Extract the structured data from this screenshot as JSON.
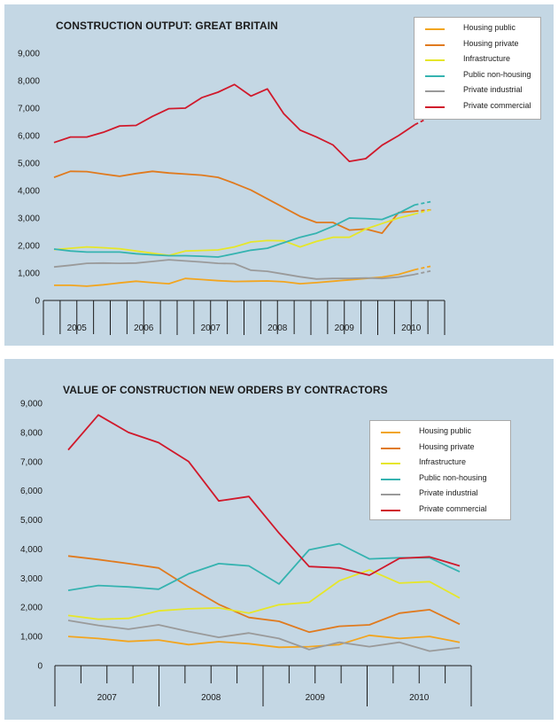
{
  "charts": [
    {
      "id": "panel1",
      "chart_data": {
        "type": "line",
        "title": "CONSTRUCTION OUTPUT: GREAT BRITAIN",
        "xlabel": "",
        "ylabel": "",
        "ylim": [
          0,
          9000
        ],
        "yticks": [
          "0",
          "1,000",
          "2,000",
          "3,000",
          "4,000",
          "5,000",
          "6,000",
          "7,000",
          "8,000",
          "9,000"
        ],
        "year_labels": [
          "2005",
          "2006",
          "2007",
          "2008",
          "2009",
          "2010"
        ],
        "quarters_per_year": 4,
        "legend_position": "top-right",
        "series": [
          {
            "name": "Housing public",
            "color": "#f2a51f",
            "dashed_last_segment": true,
            "values": [
              550,
              550,
              520,
              570,
              640,
              700,
              650,
              610,
              800,
              760,
              720,
              690,
              700,
              710,
              680,
              610,
              650,
              700,
              750,
              800,
              850,
              950,
              1120,
              1250
            ]
          },
          {
            "name": "Housing private",
            "color": "#e07a1e",
            "dashed_last_segment": true,
            "values": [
              4480,
              4700,
              4690,
              4600,
              4520,
              4620,
              4700,
              4640,
              4600,
              4560,
              4480,
              4260,
              4020,
              3700,
              3380,
              3060,
              2840,
              2840,
              2560,
              2600,
              2450,
              3200,
              3250,
              3300
            ]
          },
          {
            "name": "Infrastructure",
            "color": "#e6e62a",
            "dashed_last_segment": true,
            "values": [
              1850,
              1900,
              1950,
              1920,
              1880,
              1800,
              1720,
              1640,
              1800,
              1820,
              1840,
              1950,
              2130,
              2180,
              2170,
              1950,
              2150,
              2300,
              2300,
              2600,
              2800,
              3000,
              3150,
              3300
            ]
          },
          {
            "name": "Public non-housing",
            "color": "#35b3b0",
            "dashed_last_segment": true,
            "values": [
              1870,
              1800,
              1760,
              1760,
              1760,
              1700,
              1660,
              1630,
              1630,
              1610,
              1580,
              1700,
              1830,
              1900,
              2100,
              2300,
              2450,
              2700,
              3000,
              2980,
              2950,
              3180,
              3480,
              3600
            ]
          },
          {
            "name": "Private industrial",
            "color": "#9a9a9a",
            "dashed_last_segment": true,
            "values": [
              1220,
              1280,
              1350,
              1360,
              1350,
              1360,
              1420,
              1480,
              1440,
              1400,
              1350,
              1340,
              1100,
              1060,
              960,
              860,
              780,
              800,
              800,
              820,
              800,
              850,
              950,
              1080
            ]
          },
          {
            "name": "Private commercial",
            "color": "#d0192b",
            "dashed_last_segment": true,
            "values": [
              5750,
              5950,
              5950,
              6120,
              6350,
              6370,
              6700,
              6980,
              7000,
              7380,
              7580,
              7860,
              7440,
              7700,
              6800,
              6200,
              5950,
              5660,
              5060,
              5160,
              5650,
              6000,
              6400,
              6700
            ]
          }
        ]
      }
    },
    {
      "id": "panel2",
      "chart_data": {
        "type": "line",
        "title": "VALUE OF CONSTRUCTION NEW ORDERS BY CONTRACTORS",
        "xlabel": "",
        "ylabel": "",
        "ylim": [
          0,
          9000
        ],
        "yticks": [
          "0",
          "1,000",
          "2,000",
          "3,000",
          "4,000",
          "5,000",
          "6,000",
          "7,000",
          "8,000",
          "9,000"
        ],
        "year_labels": [
          "2007",
          "2008",
          "2009",
          "2010"
        ],
        "quarters_per_year": 4,
        "legend_position": "top-right",
        "series": [
          {
            "name": "Housing public",
            "color": "#f2a51f",
            "values": [
              1000,
              930,
              830,
              880,
              720,
              820,
              750,
              630,
              650,
              720,
              1040,
              930,
              1000,
              800
            ]
          },
          {
            "name": "Housing private",
            "color": "#e07a1e",
            "values": [
              3760,
              3640,
              3500,
              3350,
              2700,
              2100,
              1650,
              1520,
              1150,
              1350,
              1400,
              1800,
              1920,
              1420
            ]
          },
          {
            "name": "Infrastructure",
            "color": "#e6e62a",
            "values": [
              1720,
              1590,
              1620,
              1880,
              1950,
              1980,
              1800,
              2090,
              2170,
              2910,
              3280,
              2830,
              2880,
              2320
            ]
          },
          {
            "name": "Public non-housing",
            "color": "#35b3b0",
            "values": [
              2580,
              2750,
              2700,
              2620,
              3150,
              3500,
              3420,
              2800,
              3970,
              4180,
              3660,
              3700,
              3700,
              3220
            ]
          },
          {
            "name": "Private industrial",
            "color": "#9a9a9a",
            "values": [
              1550,
              1380,
              1250,
              1400,
              1170,
              970,
              1120,
              930,
              550,
              800,
              650,
              800,
              500,
              620
            ]
          },
          {
            "name": "Private commercial",
            "color": "#d0192b",
            "values": [
              7400,
              8600,
              8000,
              7650,
              7000,
              5650,
              5800,
              4550,
              3400,
              3350,
              3100,
              3680,
              3730,
              3420
            ]
          }
        ]
      }
    }
  ]
}
